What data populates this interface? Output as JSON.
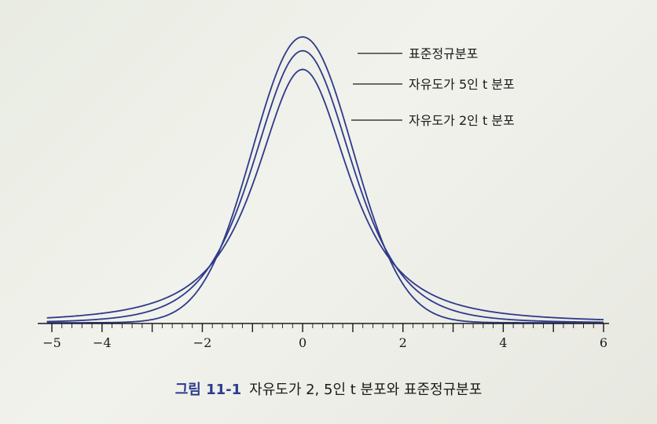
{
  "caption": {
    "figure_number": "그림 11-1",
    "text": "자유도가 2, 5인 t 분포와 표준정규분포"
  },
  "chart_data": {
    "type": "line",
    "title": "자유도가 2, 5인 t 분포와 표준정규분포",
    "xlabel": "",
    "ylabel": "",
    "xlim": [
      -5.1,
      6.0
    ],
    "ylim": [
      0,
      0.42
    ],
    "grid": false,
    "x_ticks": [
      -5,
      -4,
      -2,
      0,
      2,
      4,
      6
    ],
    "x_tick_labels": [
      "−5",
      "−4",
      "−2",
      "0",
      "2",
      "4",
      "6"
    ],
    "line_color": "#2e3a8a",
    "series": [
      {
        "name": "표준정규분포",
        "distribution": "normal",
        "df": null,
        "peak": 0.399
      },
      {
        "name": "자유도가 5인 t 분포",
        "distribution": "t",
        "df": 5,
        "peak": 0.38
      },
      {
        "name": "자유도가 2인 t 분포",
        "distribution": "t",
        "df": 2,
        "peak": 0.354
      }
    ]
  }
}
